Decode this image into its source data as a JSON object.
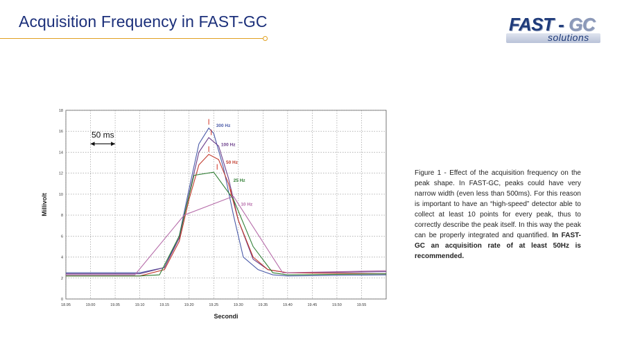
{
  "header": {
    "title": "Acquisition Frequency in FAST-GC",
    "logo_main_a": "FAST - ",
    "logo_main_b": "GC",
    "logo_sub": "solutions"
  },
  "caption": {
    "lead": "Figure 1",
    "text": " - Effect of the acquisition frequency on the peak shape. In FAST-GC, peaks could have very narrow width (even less than 500ms). For this reason is important to have an “high-speed” detector able to collect at least 10 points for every peak, thus to correctly describe the peak itself. In this way the peak can be properly integrated and quantified. ",
    "bold": "In FAST-GC an acquisition rate of at least 50Hz is recommended."
  },
  "chart_data": {
    "type": "line",
    "title": "",
    "xlabel": "Secondi",
    "ylabel": "Millivolt",
    "xlim": [
      18.95,
      19.6
    ],
    "ylim": [
      0,
      18
    ],
    "xticks": [
      "18.95",
      "19.00",
      "19.05",
      "19.10",
      "19.15",
      "19.20",
      "19.25",
      "19.30",
      "19.35",
      "19.40",
      "19.45",
      "19.50",
      "19.55"
    ],
    "yticks": [
      "0",
      "2",
      "4",
      "6",
      "8",
      "10",
      "12",
      "14",
      "16",
      "18"
    ],
    "grid": true,
    "annotation": {
      "text": "50 ms",
      "x_from": 19.0,
      "x_to": 19.05,
      "y": 14.8
    },
    "series": [
      {
        "name": "300 Hz",
        "color": "#4a5aa8",
        "x": [
          18.95,
          19.1,
          19.15,
          19.18,
          19.2,
          19.22,
          19.24,
          19.25,
          19.27,
          19.29,
          19.31,
          19.34,
          19.37,
          19.4,
          19.6
        ],
        "y": [
          2.5,
          2.5,
          3.0,
          6.0,
          10.5,
          14.8,
          16.3,
          15.8,
          12.5,
          8.0,
          4.0,
          2.8,
          2.3,
          2.2,
          2.3
        ],
        "label": {
          "text": "300 Hz",
          "x": 19.255,
          "y": 16.4
        },
        "marker": {
          "x": 19.24,
          "y": 16.9
        }
      },
      {
        "name": "100 Hz",
        "color": "#6a3d8a",
        "x": [
          18.95,
          19.1,
          19.15,
          19.18,
          19.2,
          19.22,
          19.24,
          19.26,
          19.28,
          19.3,
          19.33,
          19.36,
          19.4,
          19.6
        ],
        "y": [
          2.4,
          2.4,
          3.0,
          5.8,
          10.0,
          14.0,
          15.4,
          14.6,
          11.5,
          7.5,
          3.8,
          2.8,
          2.5,
          2.6
        ],
        "label": {
          "text": "100 Hz",
          "x": 19.265,
          "y": 14.6
        },
        "marker": {
          "x": 19.245,
          "y": 15.9
        }
      },
      {
        "name": "50 Hz",
        "color": "#c0392b",
        "x": [
          18.95,
          19.1,
          19.15,
          19.18,
          19.2,
          19.22,
          19.24,
          19.26,
          19.28,
          19.3,
          19.33,
          19.36,
          19.4,
          19.6
        ],
        "y": [
          2.2,
          2.2,
          2.8,
          5.5,
          9.5,
          12.8,
          13.8,
          13.3,
          11.0,
          7.5,
          4.0,
          2.8,
          2.5,
          2.4
        ],
        "label": {
          "text": "50 Hz",
          "x": 19.275,
          "y": 12.9
        },
        "marker": {
          "x": 19.24,
          "y": 14.3
        }
      },
      {
        "name": "25 Hz",
        "color": "#2e7d32",
        "x": [
          18.95,
          19.1,
          19.14,
          19.18,
          19.21,
          19.25,
          19.29,
          19.33,
          19.37,
          19.4,
          19.6
        ],
        "y": [
          2.2,
          2.2,
          2.3,
          6.0,
          11.8,
          12.1,
          9.5,
          5.0,
          2.5,
          2.3,
          2.4
        ],
        "label": {
          "text": "25 Hz",
          "x": 19.29,
          "y": 11.2
        },
        "marker": {
          "x": 19.257,
          "y": 12.6
        }
      },
      {
        "name": "10 Hz",
        "color": "#b56aa8",
        "x": [
          18.95,
          19.09,
          19.19,
          19.29,
          19.39,
          19.6
        ],
        "y": [
          2.3,
          2.3,
          8.0,
          9.8,
          2.5,
          2.7
        ],
        "label": {
          "text": "10 Hz",
          "x": 19.305,
          "y": 8.9
        },
        "marker": {
          "x": 19.285,
          "y": 10.2
        }
      }
    ]
  }
}
